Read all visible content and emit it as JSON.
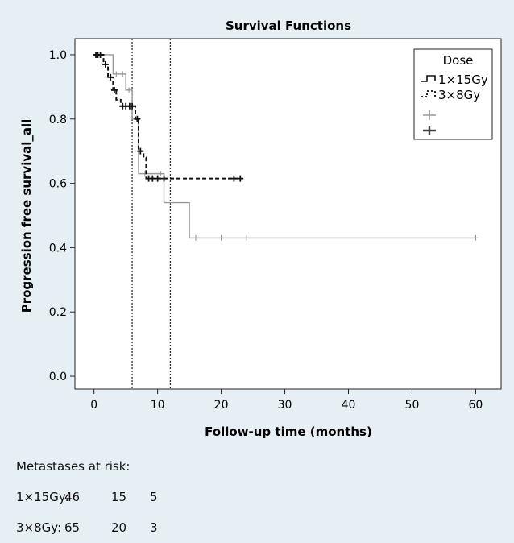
{
  "chart_data": {
    "type": "line",
    "title": "Survival Functions",
    "xlabel": "Follow-up time (months)",
    "ylabel": "Progression free survival_all",
    "xlim": [
      -3,
      64
    ],
    "ylim": [
      -0.04,
      1.05
    ],
    "xticks": [
      0,
      10,
      20,
      30,
      40,
      50,
      60
    ],
    "yticks": [
      "0.0",
      "0.2",
      "0.4",
      "0.6",
      "0.8",
      "1.0"
    ],
    "grid": false,
    "vlines": [
      6,
      12
    ],
    "legend": {
      "title": "Dose",
      "position": "top-right",
      "entries": [
        "1×15Gy",
        "3×8Gy"
      ]
    },
    "series": [
      {
        "name": "1×15Gy",
        "color": "#9a9a9a",
        "dash": "solid",
        "steps": [
          [
            0,
            1.0
          ],
          [
            3,
            0.94
          ],
          [
            5,
            0.89
          ],
          [
            6,
            0.8
          ],
          [
            7,
            0.63
          ],
          [
            11,
            0.54
          ],
          [
            15,
            0.43
          ],
          [
            60,
            0.43
          ]
        ],
        "censored": [
          [
            3.5,
            0.94
          ],
          [
            4.5,
            0.94
          ],
          [
            5.5,
            0.89
          ],
          [
            8,
            0.63
          ],
          [
            10.5,
            0.63
          ],
          [
            16,
            0.43
          ],
          [
            20,
            0.43
          ],
          [
            24,
            0.43
          ],
          [
            60,
            0.43
          ]
        ]
      },
      {
        "name": "3×8Gy",
        "color": "#111111",
        "dash": "dashed",
        "steps": [
          [
            0,
            1.0
          ],
          [
            1.5,
            0.97
          ],
          [
            2.2,
            0.93
          ],
          [
            3,
            0.89
          ],
          [
            3.5,
            0.86
          ],
          [
            4.2,
            0.84
          ],
          [
            6.5,
            0.8
          ],
          [
            7,
            0.7
          ],
          [
            7.8,
            0.68
          ],
          [
            8.2,
            0.615
          ],
          [
            23,
            0.615
          ]
        ],
        "censored": [
          [
            0.3,
            1.0
          ],
          [
            0.6,
            1.0
          ],
          [
            1.0,
            1.0
          ],
          [
            1.8,
            0.97
          ],
          [
            2.6,
            0.93
          ],
          [
            3.2,
            0.89
          ],
          [
            4.5,
            0.84
          ],
          [
            5.0,
            0.84
          ],
          [
            5.6,
            0.84
          ],
          [
            6.0,
            0.84
          ],
          [
            6.8,
            0.8
          ],
          [
            7.3,
            0.7
          ],
          [
            8.6,
            0.615
          ],
          [
            9.2,
            0.615
          ],
          [
            10.0,
            0.615
          ],
          [
            11.0,
            0.615
          ],
          [
            22.0,
            0.615
          ],
          [
            23.0,
            0.615
          ]
        ]
      }
    ]
  },
  "risk_table": {
    "heading": "Metastases at risk:",
    "rows": [
      {
        "label": "1×15Gy:",
        "values": [
          "46",
          "15",
          "5"
        ]
      },
      {
        "label": "3×8Gy:",
        "values": [
          "65",
          "20",
          "3"
        ]
      }
    ]
  }
}
